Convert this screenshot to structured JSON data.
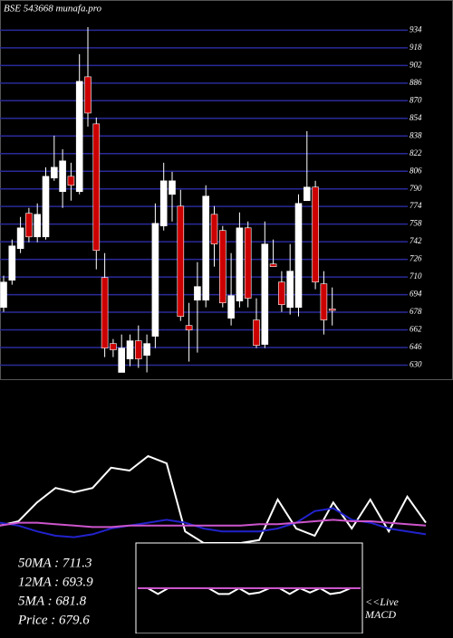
{
  "chart_data": [
    {
      "type": "candlestick",
      "title": "BSE 543668 munafa.pro",
      "open": [
        682.4,
        707.1,
        735.8,
        767.8,
        746.4,
        746.4,
        799.8,
        787.5,
        801.4,
        787.5,
        891.7,
        849.0,
        709.5,
        649.6,
        623.4,
        635.6,
        652.1,
        638.9,
        656.2,
        756.3,
        785.0,
        774.3,
        666.0,
        689.0,
        689.0,
        766.9,
        752.2,
        672.6,
        688.2,
        754.6,
        671.0,
        648.8,
        721.8,
        705.4,
        682.4,
        682.4,
        779.3,
        791.6,
        703.8,
        681.0
      ],
      "high": [
        711.2,
        744.0,
        764.5,
        772.7,
        776.8,
        809.6,
        838.3,
        826.0,
        813.7,
        912.2,
        936.8,
        854.7,
        731.7,
        653.7,
        657.8,
        657.8,
        666.0,
        657.8,
        776.8,
        813.7,
        805.5,
        789.1,
        686.5,
        723.5,
        793.2,
        774.3,
        756.3,
        731.7,
        768.6,
        760.4,
        690.7,
        760.4,
        744.0,
        715.3,
        739.9,
        785.0,
        842.4,
        797.3,
        715.3,
        700.5
      ],
      "low": [
        678.3,
        703.0,
        731.7,
        741.5,
        741.5,
        744.0,
        797.3,
        772.7,
        779.3,
        785.0,
        846.5,
        716.9,
        637.3,
        637.3,
        623.4,
        629.1,
        627.5,
        623.4,
        645.5,
        752.2,
        760.4,
        670.1,
        633.2,
        641.4,
        682.4,
        719.4,
        682.4,
        666.0,
        682.4,
        682.4,
        645.5,
        645.5,
        719.4,
        678.3,
        675.9,
        674.2,
        779.3,
        698.9,
        657.8,
        666.0
      ],
      "close": [
        705.4,
        738.2,
        754.6,
        746.4,
        766.9,
        801.4,
        809.6,
        815.4,
        793.2,
        887.6,
        858.8,
        734.1,
        645.5,
        643.9,
        645.5,
        652.1,
        635.6,
        649.6,
        758.7,
        797.3,
        797.3,
        674.2,
        661.9,
        701.3,
        783.4,
        739.9,
        686.5,
        693.1,
        754.6,
        690.7,
        647.9,
        739.9,
        719.4,
        684.9,
        715.3,
        776.8,
        791.6,
        705.4,
        671.0,
        679.6
      ],
      "up_color": "#ffffff",
      "down_color": "#cc0000",
      "grid_color": "#2a2a9a",
      "ylim": [
        623,
        945
      ],
      "yticks": [
        630,
        646,
        662,
        678,
        694,
        710,
        726,
        742,
        758,
        774,
        790,
        806,
        822,
        838,
        854,
        870,
        886,
        902,
        918,
        934
      ],
      "grid": true
    },
    {
      "type": "line",
      "annotations": [
        "50MA : 711.3",
        "12MA : 693.9",
        "5MA : 681.8",
        "Price : 679.6"
      ],
      "ylim": [
        0,
        100
      ],
      "series": [
        {
          "color": "#ffffff",
          "values": [
            12,
            15,
            28,
            38,
            35,
            38,
            52,
            50,
            60,
            55,
            8,
            0,
            0,
            0,
            2,
            30,
            10,
            5,
            28,
            10,
            30,
            8,
            32,
            14
          ]
        },
        {
          "color": "#2222cc",
          "values": [
            14,
            12,
            8,
            5,
            4,
            6,
            10,
            12,
            14,
            16,
            14,
            10,
            8,
            8,
            8,
            10,
            14,
            22,
            24,
            16,
            14,
            10,
            8,
            6
          ]
        },
        {
          "color": "#cc55cc",
          "values": [
            12,
            14,
            14,
            13,
            12,
            11,
            11,
            12,
            12,
            12,
            12,
            12,
            12,
            12,
            13,
            13,
            14,
            15,
            16,
            15,
            15,
            14,
            13,
            12
          ]
        }
      ]
    },
    {
      "type": "line",
      "annotations": [
        "<<Live",
        "MACD"
      ],
      "ylim": [
        0,
        100
      ],
      "series": [
        {
          "color": "#ffffff",
          "values": [
            50,
            50,
            42,
            50,
            50,
            50,
            50,
            50,
            42,
            42,
            50,
            42,
            44,
            50,
            50,
            42,
            50,
            44,
            50,
            42,
            44,
            50,
            50
          ]
        },
        {
          "color": "#cc55cc",
          "values": [
            50,
            50,
            50,
            50,
            50,
            50,
            50,
            50,
            50,
            50,
            50,
            50,
            50,
            50,
            50,
            50,
            50,
            50,
            50,
            50,
            50,
            50,
            50
          ]
        }
      ]
    }
  ]
}
